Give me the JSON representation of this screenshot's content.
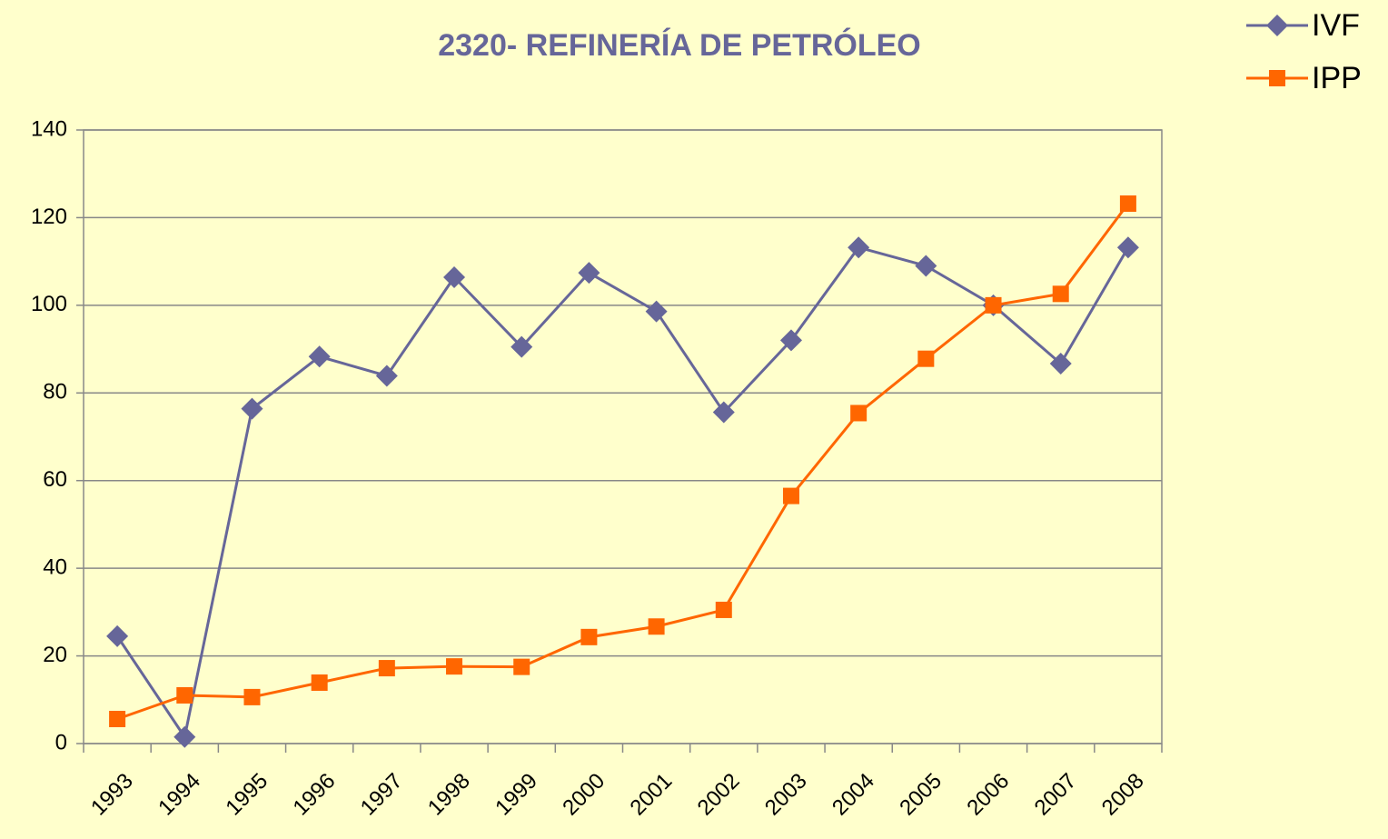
{
  "chart_data": {
    "type": "line",
    "title": "2320- REFINERÍA DE PETRÓLEO",
    "categories": [
      "1993",
      "1994",
      "1995",
      "1996",
      "1997",
      "1998",
      "1999",
      "2000",
      "2001",
      "2002",
      "2003",
      "2004",
      "2005",
      "2006",
      "2007",
      "2008"
    ],
    "series": [
      {
        "name": "IVF",
        "color": "#666699",
        "marker": "diamond",
        "values": [
          24.5,
          1.5,
          76.4,
          88.3,
          83.9,
          106.4,
          90.5,
          107.4,
          98.6,
          75.6,
          92,
          113.2,
          109,
          100,
          86.7,
          113.2
        ]
      },
      {
        "name": "IPP",
        "color": "#ff6600",
        "marker": "square",
        "values": [
          5.6,
          11,
          10.6,
          13.9,
          17.2,
          17.6,
          17.5,
          24.3,
          26.7,
          30.5,
          56.5,
          75.4,
          87.8,
          100,
          102.6,
          123.2
        ]
      }
    ],
    "ylim": [
      0,
      140
    ],
    "yticks": [
      0,
      20,
      40,
      60,
      80,
      100,
      120,
      140
    ],
    "grid": true
  }
}
